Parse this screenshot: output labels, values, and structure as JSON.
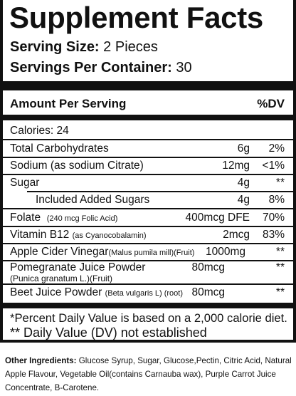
{
  "header": {
    "title": "Supplement Facts",
    "serving_size_label": "Serving Size:",
    "serving_size_value": "2 Pieces",
    "servings_per_label": "Servings Per Container:",
    "servings_per_value": "30"
  },
  "table": {
    "amount_label": "Amount Per Serving",
    "dv_label": "%DV",
    "calories": "Calories: 24",
    "rows": [
      {
        "name": "Total Carbohydrates",
        "sub": "",
        "amount": "6g",
        "dv": "2%"
      },
      {
        "name": "Sodium (as sodium Citrate)",
        "sub": "",
        "amount": "12mg",
        "dv": "<1%"
      },
      {
        "name": "Sugar",
        "sub": "",
        "amount": "4g",
        "dv": "**"
      },
      {
        "name": "Included Added Sugars",
        "sub": "",
        "amount": "4g",
        "dv": "8%"
      },
      {
        "name": "Folate",
        "sub": "(240 mcg Folic Acid)",
        "amount": "400mcg DFE",
        "dv": "70%"
      },
      {
        "name": "Vitamin B12",
        "sub": "(as Cyanocobalamin)",
        "amount": "2mcg",
        "dv": "83%"
      },
      {
        "name": "Apple Cider Vinegar",
        "sub": "(Malus pumila mill)(Fruit)",
        "amount": "1000mg",
        "dv": "**"
      },
      {
        "name": "Pomegranate Juice Powder",
        "sub": "(Punica granatum L.)(Fruit)",
        "amount": "80mcg",
        "dv": "**"
      },
      {
        "name": "Beet Juice Powder",
        "sub": "(Beta vulgaris L) (root)",
        "amount": "80mcg",
        "dv": "**"
      }
    ]
  },
  "footnotes": {
    "percent_note": "*Percent Daily Value is based on a 2,000 calorie diet.",
    "dv_note": "** Daily Value (DV) not established"
  },
  "other_ingredients": {
    "label": "Other Ingredients:",
    "text": " Glucose Syrup, Sugar, Glucose,Pectin, Citric Acid,  Natural Apple Flavour, Vegetable Oil(contains Carnauba wax), Purple Carrot Juice Concentrate, B-Carotene."
  }
}
